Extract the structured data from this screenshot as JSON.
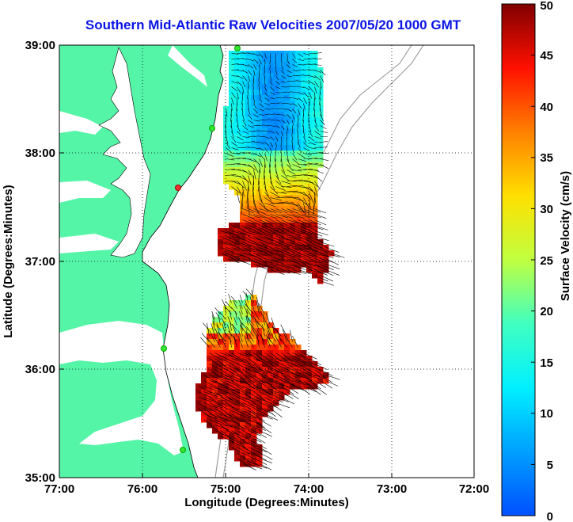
{
  "title": "Southern Mid-Atlantic Raw Velocities 2007/05/20 1000 GMT",
  "x_axis": {
    "label": "Longitude (Degrees:Minutes)",
    "ticks": [
      "77:00",
      "76:00",
      "75:00",
      "74:00",
      "73:00",
      "72:00"
    ]
  },
  "y_axis": {
    "label": "Latitude (Degrees:Minutes)",
    "ticks": [
      "39:00",
      "38:00",
      "37:00",
      "36:00",
      "35:00"
    ]
  },
  "colorbar": {
    "label": "Surface Velocity (cm/s)",
    "ticks": [
      "50",
      "45",
      "40",
      "35",
      "30",
      "25",
      "20",
      "15",
      "10",
      "5",
      "0"
    ],
    "min": 0,
    "max": 50,
    "colormap": "jet"
  },
  "colors": {
    "title": "#0a14e6",
    "land": "#55f5a8",
    "stations": "#32e632",
    "station_highlight": "#e63232"
  },
  "map": {
    "lon_range": [
      "77:00",
      "72:00"
    ],
    "lat_range": [
      "35:00",
      "39:00"
    ],
    "grid": "dotted",
    "regions": [
      {
        "name": "north",
        "speed_range_cm_s": [
          5,
          50
        ]
      },
      {
        "name": "south",
        "speed_range_cm_s": [
          15,
          50
        ]
      }
    ]
  }
}
